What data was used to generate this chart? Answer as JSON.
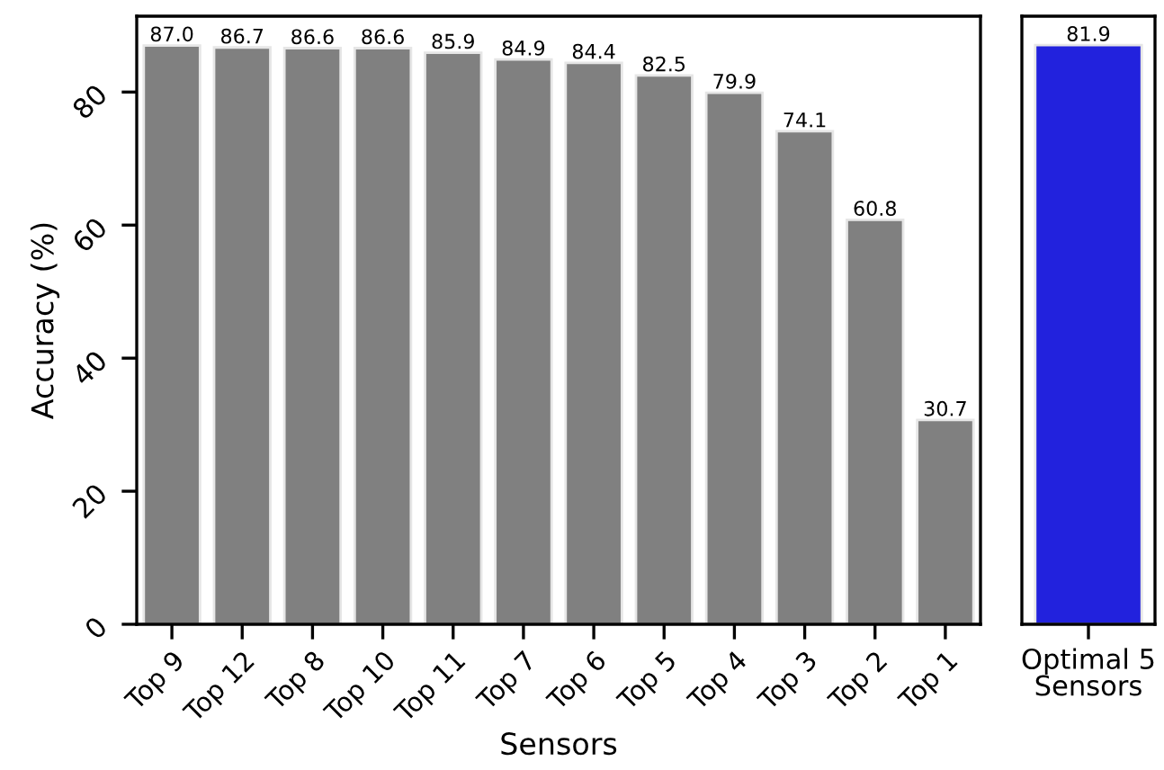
{
  "chart_data": [
    {
      "type": "bar",
      "xlabel": "Sensors",
      "ylabel": "Accuracy (%)",
      "categories": [
        "Top 9",
        "Top 12",
        "Top 8",
        "Top 10",
        "Top 11",
        "Top 7",
        "Top 6",
        "Top 5",
        "Top 4",
        "Top 3",
        "Top 2",
        "Top 1"
      ],
      "values": [
        87.0,
        86.7,
        86.6,
        86.6,
        85.9,
        84.9,
        84.4,
        82.5,
        79.9,
        74.1,
        60.8,
        30.7
      ],
      "value_labels": [
        "87.0",
        "86.7",
        "86.6",
        "86.6",
        "85.9",
        "84.9",
        "84.4",
        "82.5",
        "79.9",
        "74.1",
        "60.8",
        "30.7"
      ],
      "color": "#808080",
      "ylim": [
        0,
        91.4
      ],
      "yticks": [
        0,
        20,
        40,
        60,
        80
      ]
    },
    {
      "type": "bar",
      "categories": [
        "Optimal 5\nSensors"
      ],
      "values": [
        81.9
      ],
      "value_labels": [
        "81.9"
      ],
      "color": "#2222dd",
      "ylim": [
        0,
        86
      ],
      "tick_labels": "x"
    }
  ]
}
